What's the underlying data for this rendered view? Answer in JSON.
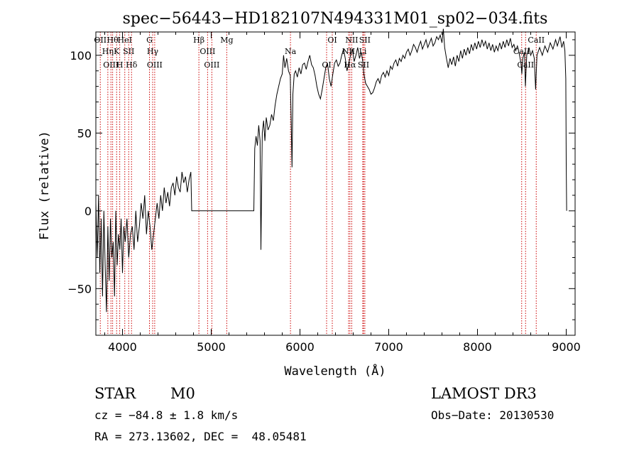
{
  "chart_data": {
    "type": "line",
    "title": "spec−56443−HD182107N494331M01_sp02−034.fits",
    "xlabel": "Wavelength (Å)",
    "ylabel": "Flux (relative)",
    "xlim": [
      3700,
      9100
    ],
    "ylim": [
      -80,
      115
    ],
    "grid": false,
    "legend": "none",
    "x_ticks": [
      {
        "value": 4000,
        "label": "4000"
      },
      {
        "value": 5000,
        "label": "5000"
      },
      {
        "value": 6000,
        "label": "6000"
      },
      {
        "value": 7000,
        "label": "7000"
      },
      {
        "value": 8000,
        "label": "8000"
      },
      {
        "value": 9000,
        "label": "9000"
      }
    ],
    "y_ticks": [
      {
        "value": 100,
        "label": "100"
      },
      {
        "value": 50,
        "label": "50"
      },
      {
        "value": 0,
        "label": "0"
      },
      {
        "value": -50,
        "label": "−50"
      }
    ],
    "series": [
      {
        "color": "#000000",
        "points": [
          [
            3700,
            5
          ],
          [
            3715,
            -30
          ],
          [
            3730,
            10
          ],
          [
            3745,
            -40
          ],
          [
            3760,
            -5
          ],
          [
            3775,
            -55
          ],
          [
            3790,
            0
          ],
          [
            3805,
            -35
          ],
          [
            3820,
            -65
          ],
          [
            3835,
            -10
          ],
          [
            3850,
            -45
          ],
          [
            3865,
            -5
          ],
          [
            3880,
            -30
          ],
          [
            3895,
            -20
          ],
          [
            3910,
            -55
          ],
          [
            3925,
            0
          ],
          [
            3940,
            -35
          ],
          [
            3955,
            -15
          ],
          [
            3970,
            -25
          ],
          [
            3985,
            -5
          ],
          [
            4000,
            -40
          ],
          [
            4015,
            -10
          ],
          [
            4030,
            -20
          ],
          [
            4050,
            -5
          ],
          [
            4070,
            -30
          ],
          [
            4090,
            -15
          ],
          [
            4110,
            -10
          ],
          [
            4130,
            -25
          ],
          [
            4150,
            0
          ],
          [
            4170,
            -20
          ],
          [
            4190,
            -10
          ],
          [
            4210,
            5
          ],
          [
            4230,
            -5
          ],
          [
            4250,
            10
          ],
          [
            4270,
            -15
          ],
          [
            4290,
            0
          ],
          [
            4310,
            -10
          ],
          [
            4330,
            -25
          ],
          [
            4350,
            -15
          ],
          [
            4370,
            -5
          ],
          [
            4390,
            5
          ],
          [
            4410,
            -5
          ],
          [
            4430,
            10
          ],
          [
            4450,
            0
          ],
          [
            4470,
            15
          ],
          [
            4490,
            5
          ],
          [
            4510,
            12
          ],
          [
            4530,
            3
          ],
          [
            4550,
            15
          ],
          [
            4570,
            18
          ],
          [
            4590,
            10
          ],
          [
            4610,
            22
          ],
          [
            4630,
            15
          ],
          [
            4650,
            12
          ],
          [
            4670,
            25
          ],
          [
            4690,
            18
          ],
          [
            4710,
            22
          ],
          [
            4730,
            12
          ],
          [
            4750,
            20
          ],
          [
            4770,
            25
          ],
          [
            4780,
            0
          ],
          [
            5000,
            0
          ],
          [
            5200,
            0
          ],
          [
            5480,
            0
          ],
          [
            5490,
            40
          ],
          [
            5505,
            48
          ],
          [
            5520,
            42
          ],
          [
            5535,
            55
          ],
          [
            5550,
            45
          ],
          [
            5560,
            -25
          ],
          [
            5575,
            50
          ],
          [
            5590,
            58
          ],
          [
            5605,
            45
          ],
          [
            5620,
            60
          ],
          [
            5640,
            52
          ],
          [
            5660,
            55
          ],
          [
            5680,
            62
          ],
          [
            5700,
            58
          ],
          [
            5720,
            68
          ],
          [
            5740,
            75
          ],
          [
            5760,
            80
          ],
          [
            5780,
            85
          ],
          [
            5800,
            88
          ],
          [
            5815,
            100
          ],
          [
            5830,
            92
          ],
          [
            5850,
            98
          ],
          [
            5870,
            90
          ],
          [
            5890,
            87
          ],
          [
            5900,
            60
          ],
          [
            5910,
            28
          ],
          [
            5920,
            75
          ],
          [
            5935,
            88
          ],
          [
            5950,
            90
          ],
          [
            5970,
            86
          ],
          [
            5990,
            92
          ],
          [
            6010,
            88
          ],
          [
            6030,
            94
          ],
          [
            6050,
            95
          ],
          [
            6070,
            91
          ],
          [
            6090,
            96
          ],
          [
            6110,
            100
          ],
          [
            6130,
            94
          ],
          [
            6150,
            92
          ],
          [
            6170,
            87
          ],
          [
            6190,
            80
          ],
          [
            6210,
            75
          ],
          [
            6230,
            72
          ],
          [
            6250,
            78
          ],
          [
            6270,
            85
          ],
          [
            6290,
            92
          ],
          [
            6310,
            95
          ],
          [
            6330,
            85
          ],
          [
            6350,
            80
          ],
          [
            6370,
            88
          ],
          [
            6390,
            95
          ],
          [
            6410,
            97
          ],
          [
            6430,
            93
          ],
          [
            6450,
            95
          ],
          [
            6470,
            100
          ],
          [
            6490,
            104
          ],
          [
            6510,
            98
          ],
          [
            6530,
            90
          ],
          [
            6550,
            95
          ],
          [
            6570,
            100
          ],
          [
            6590,
            104
          ],
          [
            6610,
            96
          ],
          [
            6630,
            100
          ],
          [
            6650,
            105
          ],
          [
            6670,
            98
          ],
          [
            6690,
            102
          ],
          [
            6710,
            95
          ],
          [
            6720,
            88
          ],
          [
            6740,
            82
          ],
          [
            6760,
            80
          ],
          [
            6780,
            78
          ],
          [
            6800,
            75
          ],
          [
            6820,
            76
          ],
          [
            6840,
            79
          ],
          [
            6860,
            83
          ],
          [
            6880,
            85
          ],
          [
            6900,
            82
          ],
          [
            6920,
            87
          ],
          [
            6940,
            89
          ],
          [
            6960,
            86
          ],
          [
            6980,
            90
          ],
          [
            7000,
            87
          ],
          [
            7020,
            93
          ],
          [
            7040,
            91
          ],
          [
            7060,
            95
          ],
          [
            7080,
            97
          ],
          [
            7100,
            93
          ],
          [
            7120,
            98
          ],
          [
            7140,
            96
          ],
          [
            7160,
            100
          ],
          [
            7180,
            98
          ],
          [
            7200,
            102
          ],
          [
            7220,
            104
          ],
          [
            7240,
            100
          ],
          [
            7260,
            103
          ],
          [
            7280,
            107
          ],
          [
            7300,
            105
          ],
          [
            7320,
            102
          ],
          [
            7340,
            106
          ],
          [
            7360,
            109
          ],
          [
            7380,
            104
          ],
          [
            7400,
            107
          ],
          [
            7420,
            110
          ],
          [
            7440,
            105
          ],
          [
            7460,
            108
          ],
          [
            7480,
            111
          ],
          [
            7500,
            106
          ],
          [
            7520,
            108
          ],
          [
            7540,
            112
          ],
          [
            7560,
            110
          ],
          [
            7580,
            113
          ],
          [
            7600,
            108
          ],
          [
            7615,
            117
          ],
          [
            7630,
            105
          ],
          [
            7650,
            98
          ],
          [
            7670,
            92
          ],
          [
            7690,
            98
          ],
          [
            7710,
            94
          ],
          [
            7730,
            99
          ],
          [
            7750,
            93
          ],
          [
            7770,
            100
          ],
          [
            7790,
            96
          ],
          [
            7810,
            103
          ],
          [
            7830,
            98
          ],
          [
            7850,
            104
          ],
          [
            7870,
            100
          ],
          [
            7890,
            105
          ],
          [
            7910,
            101
          ],
          [
            7930,
            107
          ],
          [
            7950,
            103
          ],
          [
            7970,
            108
          ],
          [
            7990,
            104
          ],
          [
            8010,
            109
          ],
          [
            8030,
            105
          ],
          [
            8050,
            110
          ],
          [
            8070,
            106
          ],
          [
            8090,
            109
          ],
          [
            8110,
            104
          ],
          [
            8130,
            108
          ],
          [
            8150,
            103
          ],
          [
            8170,
            107
          ],
          [
            8190,
            102
          ],
          [
            8210,
            106
          ],
          [
            8230,
            103
          ],
          [
            8250,
            108
          ],
          [
            8270,
            104
          ],
          [
            8290,
            109
          ],
          [
            8310,
            105
          ],
          [
            8330,
            110
          ],
          [
            8350,
            106
          ],
          [
            8370,
            111
          ],
          [
            8390,
            105
          ],
          [
            8410,
            107
          ],
          [
            8430,
            103
          ],
          [
            8450,
            106
          ],
          [
            8470,
            101
          ],
          [
            8490,
            95
          ],
          [
            8500,
            88
          ],
          [
            8510,
            98
          ],
          [
            8530,
            102
          ],
          [
            8540,
            80
          ],
          [
            8555,
            100
          ],
          [
            8580,
            105
          ],
          [
            8600,
            100
          ],
          [
            8620,
            103
          ],
          [
            8640,
            98
          ],
          [
            8655,
            78
          ],
          [
            8670,
            100
          ],
          [
            8700,
            105
          ],
          [
            8730,
            100
          ],
          [
            8760,
            106
          ],
          [
            8790,
            102
          ],
          [
            8820,
            108
          ],
          [
            8850,
            104
          ],
          [
            8880,
            110
          ],
          [
            8900,
            106
          ],
          [
            8930,
            112
          ],
          [
            8950,
            105
          ],
          [
            8970,
            109
          ],
          [
            8985,
            103
          ],
          [
            8995,
            85
          ],
          [
            9000,
            30
          ],
          [
            9005,
            0
          ]
        ]
      }
    ],
    "lines": [
      {
        "x": 3750,
        "label": "OII"
      },
      {
        "x": 3835,
        "label": "Hη"
      },
      {
        "x": 3870,
        "label": "OIII"
      },
      {
        "x": 3889,
        "label": "Hθ"
      },
      {
        "x": 3934,
        "label": "K"
      },
      {
        "x": 3969,
        "label": "H"
      },
      {
        "x": 4026,
        "label": "HeI"
      },
      {
        "x": 4070,
        "label": "SII"
      },
      {
        "x": 4102,
        "label": "Hδ"
      },
      {
        "x": 4304,
        "label": "G"
      },
      {
        "x": 4340,
        "label": "Hγ"
      },
      {
        "x": 4363,
        "label": "OIII"
      },
      {
        "x": 4861,
        "label": "Hβ"
      },
      {
        "x": 4959,
        "label": "OIII"
      },
      {
        "x": 5007,
        "label": "OIII"
      },
      {
        "x": 5175,
        "label": "Mg"
      },
      {
        "x": 5893,
        "label": "Na"
      },
      {
        "x": 6300,
        "label": "OI"
      },
      {
        "x": 6364,
        "label": "OI"
      },
      {
        "x": 6548,
        "label": "NII"
      },
      {
        "x": 6563,
        "label": "Hα"
      },
      {
        "x": 6583,
        "label": "NII"
      },
      {
        "x": 6708,
        "label": "Li"
      },
      {
        "x": 6716,
        "label": "SII"
      },
      {
        "x": 6731,
        "label": "SII"
      },
      {
        "x": 8498,
        "label": "CaII"
      },
      {
        "x": 8542,
        "label": "CaII"
      },
      {
        "x": 8662,
        "label": "CaII"
      }
    ]
  },
  "info": {
    "object_class": "STAR",
    "subclass": "M0",
    "survey": "LAMOST DR3",
    "cz": "cz = −84.8 ± 1.8 km/s",
    "obs_date": "Obs−Date: 20130530",
    "coords": "RA = 273.13602, DEC =  48.05481"
  }
}
